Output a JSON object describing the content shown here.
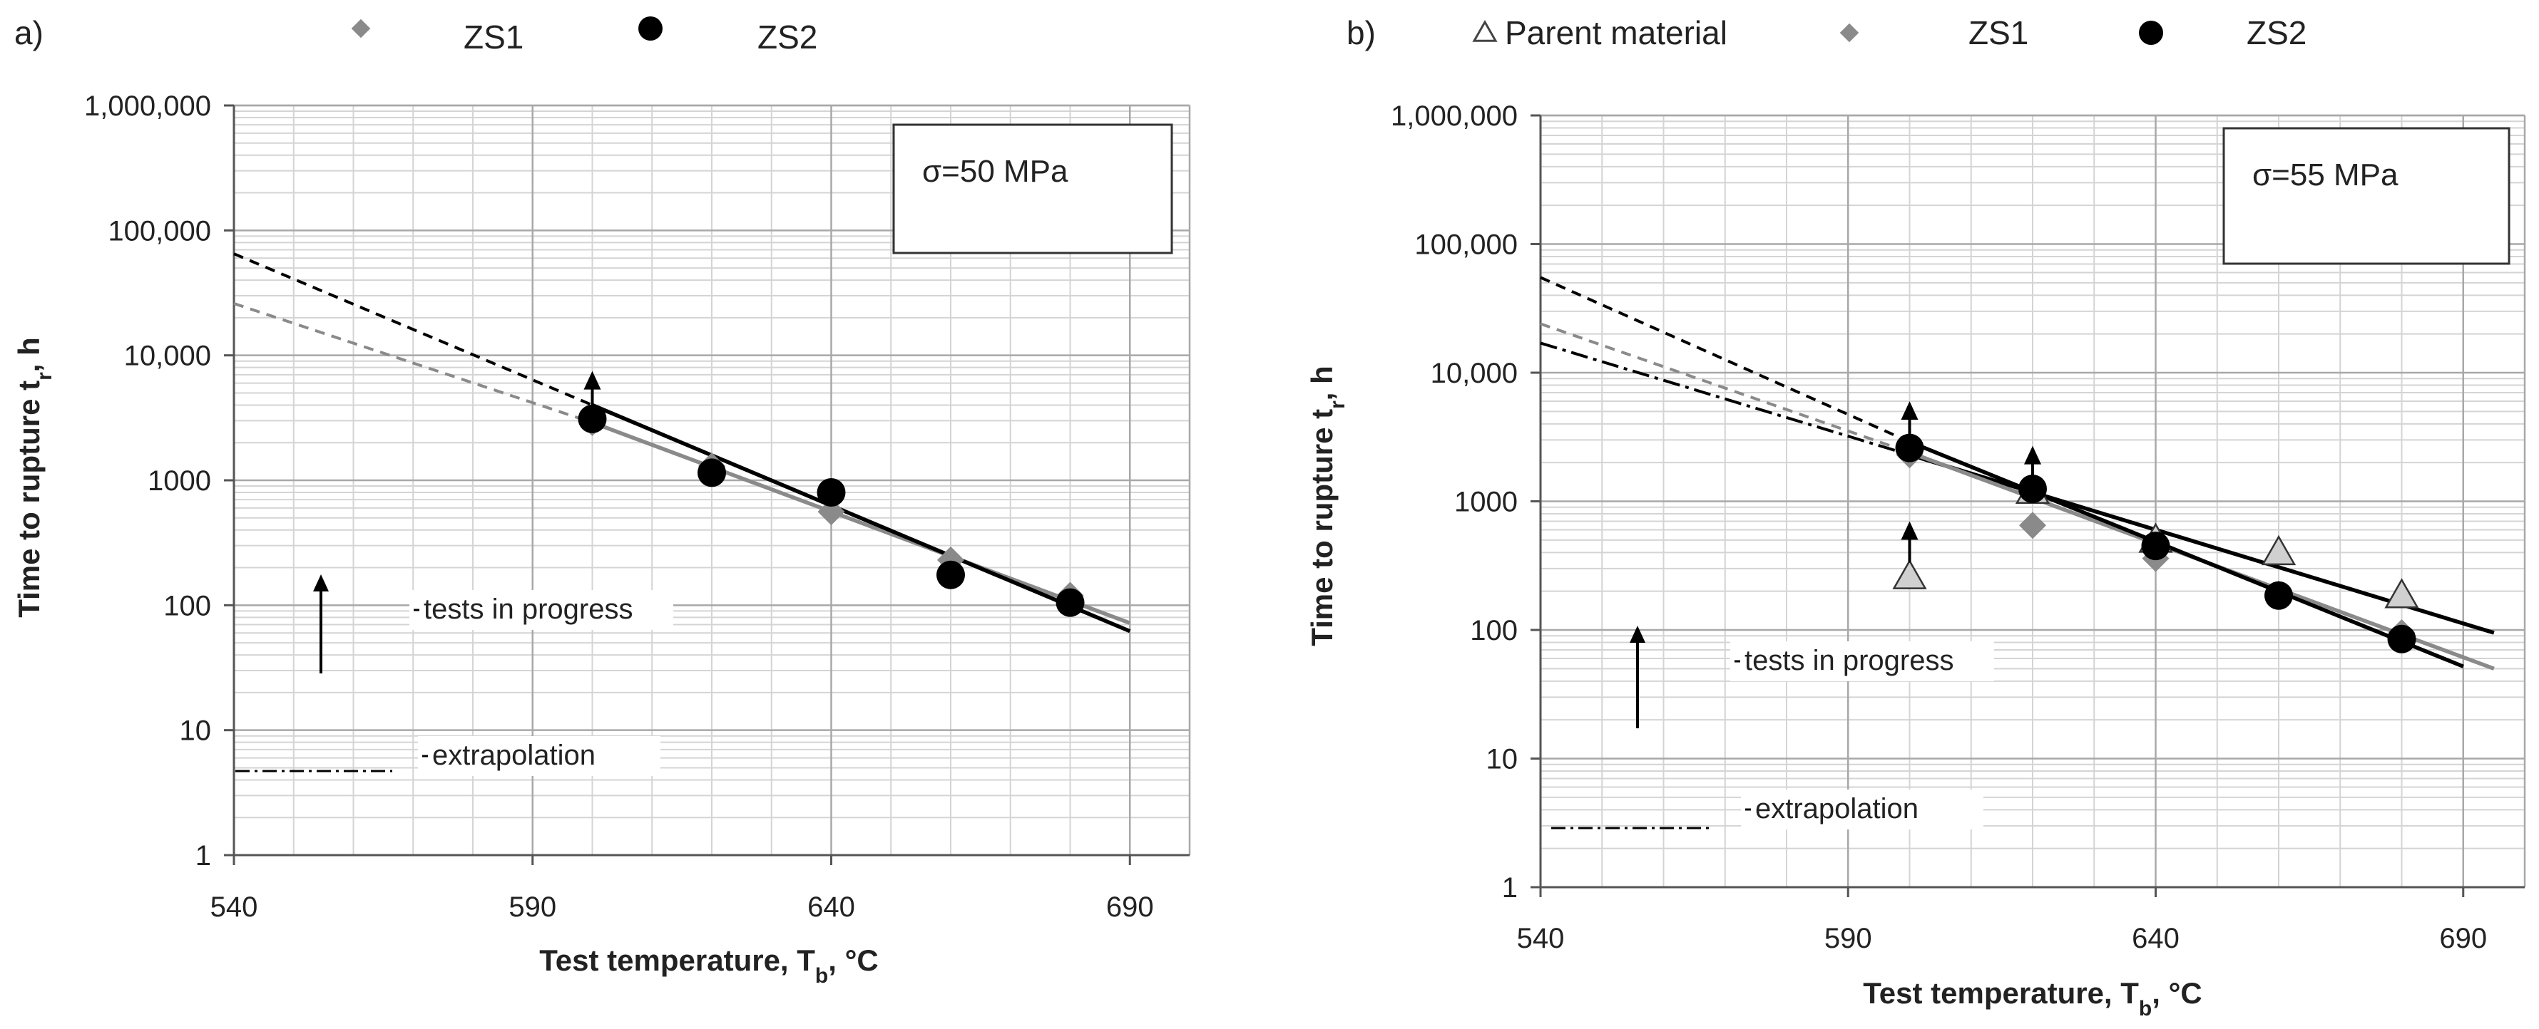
{
  "chart_data": [
    {
      "type": "scatter",
      "panel_label": "a)",
      "stress_label": "σ=50 MPa",
      "xlabel": "Test temperature, T",
      "xlabel_sub": "b",
      "xlabel_suffix": ", °C",
      "ylabel": "Time to rupture t",
      "ylabel_sub": "r",
      "ylabel_suffix": ", h",
      "xlim": [
        540,
        700
      ],
      "ylim": [
        1,
        1000000
      ],
      "yscale": "log",
      "xticks": [
        540,
        590,
        640,
        690
      ],
      "xtick_labels": [
        "540",
        "590",
        "640",
        "690"
      ],
      "yticks": [
        1,
        10,
        100,
        1000,
        10000,
        100000,
        1000000
      ],
      "ytick_labels": [
        "1",
        "10",
        "100",
        "1000",
        "10,000",
        "100,000",
        "1,000,000"
      ],
      "legend": [
        {
          "name": "ZS1",
          "marker": "diamond",
          "color": "#8a8a8a"
        },
        {
          "name": "ZS2",
          "marker": "circle",
          "color": "#000000"
        }
      ],
      "annotations": {
        "in_progress": "tests in progress",
        "extrapolation": "extrapolation"
      },
      "series": [
        {
          "name": "ZS1",
          "marker": "diamond",
          "color": "#8a8a8a",
          "points": [
            {
              "x": 600,
              "y": 2900
            },
            {
              "x": 620,
              "y": 1300
            },
            {
              "x": 640,
              "y": 560
            },
            {
              "x": 660,
              "y": 230
            },
            {
              "x": 680,
              "y": 120
            }
          ]
        },
        {
          "name": "ZS2",
          "marker": "circle",
          "color": "#000000",
          "points": [
            {
              "x": 600,
              "y": 3100
            },
            {
              "x": 620,
              "y": 1150
            },
            {
              "x": 640,
              "y": 800
            },
            {
              "x": 660,
              "y": 175
            },
            {
              "x": 680,
              "y": 105
            }
          ]
        }
      ],
      "fits": [
        {
          "name": "ZS1 fit",
          "color": "#8a8a8a",
          "from": [
            600,
            2900
          ],
          "to": [
            690,
            72
          ]
        },
        {
          "name": "ZS2 fit",
          "color": "#000000",
          "from": [
            600,
            4000
          ],
          "to": [
            690,
            62
          ]
        }
      ],
      "extrapolations": [
        {
          "name": "ZS1 extrapolation",
          "color": "#8a8a8a",
          "from": [
            540,
            26000
          ],
          "to": [
            600,
            2900
          ]
        },
        {
          "name": "ZS2 extrapolation",
          "color": "#000000",
          "from": [
            540,
            65000
          ],
          "to": [
            600,
            4000
          ]
        }
      ],
      "progress_arrows": [
        {
          "x": 600,
          "y_from": 3100,
          "y_to": 7500
        }
      ]
    },
    {
      "type": "scatter",
      "panel_label": "b)",
      "stress_label": "σ=55 MPa",
      "xlabel": "Test temperature, T",
      "xlabel_sub": "b",
      "xlabel_suffix": ", °C",
      "ylabel": "Time to rupture t",
      "ylabel_sub": "r",
      "ylabel_suffix": ", h",
      "xlim": [
        540,
        700
      ],
      "ylim": [
        1,
        1000000
      ],
      "yscale": "log",
      "xticks": [
        540,
        590,
        640,
        690
      ],
      "xtick_labels": [
        "540",
        "590",
        "640",
        "690"
      ],
      "yticks": [
        1,
        10,
        100,
        1000,
        10000,
        100000,
        1000000
      ],
      "ytick_labels": [
        "1",
        "10",
        "100",
        "1000",
        "10,000",
        "100,000",
        "1,000,000"
      ],
      "legend": [
        {
          "name": "Parent material",
          "marker": "triangle",
          "color": "#bdbdbd"
        },
        {
          "name": "ZS1",
          "marker": "diamond",
          "color": "#8a8a8a"
        },
        {
          "name": "ZS2",
          "marker": "circle",
          "color": "#000000"
        }
      ],
      "annotations": {
        "in_progress": "tests in progress",
        "extrapolation": "extrapolation"
      },
      "series": [
        {
          "name": "Parent material",
          "marker": "triangle",
          "color": "#d0d0d0",
          "points": [
            {
              "x": 600,
              "y": 260
            },
            {
              "x": 620,
              "y": 1200
            },
            {
              "x": 640,
              "y": 500
            },
            {
              "x": 660,
              "y": 400
            },
            {
              "x": 680,
              "y": 185
            }
          ]
        },
        {
          "name": "ZS1",
          "marker": "diamond",
          "color": "#8a8a8a",
          "points": [
            {
              "x": 600,
              "y": 2300
            },
            {
              "x": 620,
              "y": 650
            },
            {
              "x": 640,
              "y": 360
            },
            {
              "x": 660,
              "y": 190
            },
            {
              "x": 680,
              "y": 95
            }
          ]
        },
        {
          "name": "ZS2",
          "marker": "circle",
          "color": "#000000",
          "points": [
            {
              "x": 600,
              "y": 2600
            },
            {
              "x": 620,
              "y": 1250
            },
            {
              "x": 640,
              "y": 450
            },
            {
              "x": 660,
              "y": 185
            },
            {
              "x": 680,
              "y": 85
            }
          ]
        }
      ],
      "fits": [
        {
          "name": "Parent material fit",
          "color": "#000000",
          "from": [
            600,
            2300
          ],
          "to": [
            695,
            95
          ]
        },
        {
          "name": "ZS1 fit",
          "color": "#8a8a8a",
          "from": [
            600,
            2400
          ],
          "to": [
            695,
            50
          ]
        },
        {
          "name": "ZS2 fit",
          "color": "#000000",
          "from": [
            600,
            2900
          ],
          "to": [
            690,
            52
          ]
        }
      ],
      "extrapolations": [
        {
          "name": "Parent material extrapolation",
          "color": "#000000",
          "style": "dashdot",
          "from": [
            540,
            17000
          ],
          "to": [
            600,
            2300
          ]
        },
        {
          "name": "ZS1 extrapolation",
          "color": "#8a8a8a",
          "from": [
            540,
            24000
          ],
          "to": [
            600,
            2400
          ]
        },
        {
          "name": "ZS2 extrapolation",
          "color": "#000000",
          "from": [
            540,
            55000
          ],
          "to": [
            600,
            2900
          ]
        }
      ],
      "progress_arrows": [
        {
          "x": 600,
          "y_from": 2600,
          "y_to": 6000
        },
        {
          "x": 620,
          "y_from": 1300,
          "y_to": 2700
        },
        {
          "x": 600,
          "y_from": 280,
          "y_to": 700
        }
      ]
    }
  ]
}
